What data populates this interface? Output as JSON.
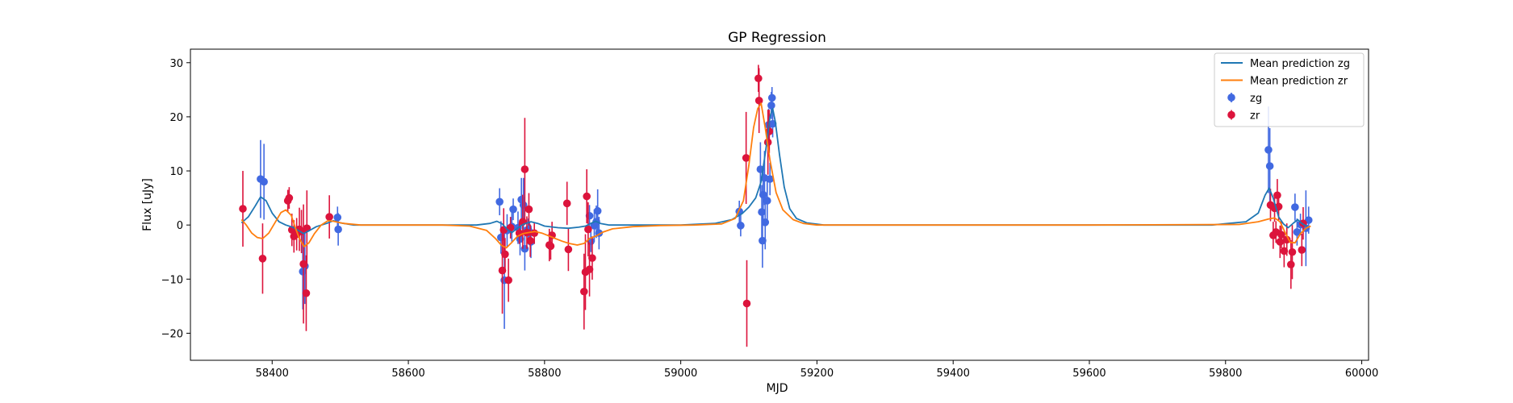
{
  "chart_data": {
    "type": "scatter",
    "title": "GP Regression",
    "xlabel": "MJD",
    "ylabel": "Flux [uJy]",
    "xlim": [
      58280,
      60010
    ],
    "ylim": [
      -25,
      32.5
    ],
    "xticks": [
      58400,
      58600,
      58800,
      59000,
      59200,
      59400,
      59600,
      59800,
      60000
    ],
    "yticks": [
      -20,
      -10,
      0,
      10,
      20,
      30
    ],
    "grid": false,
    "legend_position": "top-right",
    "legend": [
      {
        "label": "Mean prediction zg",
        "kind": "line",
        "color": "#1f77b4"
      },
      {
        "label": "Mean prediction zr",
        "kind": "line",
        "color": "#ff7f0e"
      },
      {
        "label": "zg",
        "kind": "errorbar",
        "color": "#4169e1"
      },
      {
        "label": "zr",
        "kind": "errorbar",
        "color": "#dc143c"
      }
    ],
    "series": [
      {
        "name": "Mean prediction zg",
        "kind": "line",
        "color": "#1f77b4",
        "points": [
          [
            58355,
            0.4
          ],
          [
            58365,
            1.5
          ],
          [
            58375,
            3.5
          ],
          [
            58383,
            5.2
          ],
          [
            58391,
            4.5
          ],
          [
            58400,
            2.2
          ],
          [
            58410,
            0.6
          ],
          [
            58420,
            0.0
          ],
          [
            58430,
            -0.4
          ],
          [
            58440,
            -1.1
          ],
          [
            58446,
            -1.6
          ],
          [
            58455,
            -1.0
          ],
          [
            58465,
            -0.3
          ],
          [
            58480,
            0.3
          ],
          [
            58490,
            0.8
          ],
          [
            58500,
            0.4
          ],
          [
            58520,
            0.0
          ],
          [
            58600,
            0.0
          ],
          [
            58700,
            0.0
          ],
          [
            58720,
            0.3
          ],
          [
            58730,
            0.7
          ],
          [
            58738,
            0.2
          ],
          [
            58745,
            -0.8
          ],
          [
            58752,
            -1.4
          ],
          [
            58760,
            -0.6
          ],
          [
            58770,
            0.2
          ],
          [
            58780,
            0.6
          ],
          [
            58790,
            0.3
          ],
          [
            58800,
            -0.2
          ],
          [
            58820,
            -0.5
          ],
          [
            58835,
            -0.6
          ],
          [
            58850,
            -0.4
          ],
          [
            58860,
            -0.2
          ],
          [
            58868,
            0.3
          ],
          [
            58875,
            0.7
          ],
          [
            58882,
            0.3
          ],
          [
            58895,
            0.0
          ],
          [
            59000,
            0.0
          ],
          [
            59050,
            0.3
          ],
          [
            59075,
            1.0
          ],
          [
            59090,
            2.1
          ],
          [
            59100,
            3.3
          ],
          [
            59110,
            5.0
          ],
          [
            59118,
            8.0
          ],
          [
            59125,
            14.0
          ],
          [
            59131,
            20.0
          ],
          [
            59135,
            21.5
          ],
          [
            59139,
            19.0
          ],
          [
            59145,
            13.0
          ],
          [
            59152,
            7.0
          ],
          [
            59160,
            3.0
          ],
          [
            59170,
            1.2
          ],
          [
            59185,
            0.4
          ],
          [
            59210,
            0.0
          ],
          [
            59400,
            0.0
          ],
          [
            59600,
            0.0
          ],
          [
            59780,
            0.0
          ],
          [
            59830,
            0.6
          ],
          [
            59848,
            2.2
          ],
          [
            59858,
            5.5
          ],
          [
            59864,
            6.8
          ],
          [
            59870,
            5.0
          ],
          [
            59878,
            1.5
          ],
          [
            59885,
            0.2
          ],
          [
            59892,
            -0.5
          ],
          [
            59900,
            0.4
          ],
          [
            59906,
            1.0
          ],
          [
            59912,
            0.3
          ],
          [
            59920,
            -0.3
          ]
        ]
      },
      {
        "name": "Mean prediction zr",
        "kind": "line",
        "color": "#ff7f0e",
        "points": [
          [
            58355,
            1.0
          ],
          [
            58362,
            0.0
          ],
          [
            58370,
            -1.5
          ],
          [
            58378,
            -2.3
          ],
          [
            58386,
            -2.5
          ],
          [
            58395,
            -1.5
          ],
          [
            58405,
            0.6
          ],
          [
            58413,
            2.3
          ],
          [
            58420,
            2.8
          ],
          [
            58428,
            1.8
          ],
          [
            58434,
            -0.5
          ],
          [
            58440,
            -2.5
          ],
          [
            58447,
            -4.0
          ],
          [
            58454,
            -3.3
          ],
          [
            58462,
            -1.6
          ],
          [
            58472,
            0.0
          ],
          [
            58482,
            0.8
          ],
          [
            58490,
            0.7
          ],
          [
            58505,
            0.3
          ],
          [
            58530,
            0.0
          ],
          [
            58650,
            0.0
          ],
          [
            58690,
            -0.2
          ],
          [
            58715,
            -1.0
          ],
          [
            58728,
            -2.5
          ],
          [
            58737,
            -3.8
          ],
          [
            58744,
            -4.2
          ],
          [
            58752,
            -3.2
          ],
          [
            58760,
            -2.1
          ],
          [
            58768,
            -1.6
          ],
          [
            58776,
            -1.4
          ],
          [
            58786,
            -1.2
          ],
          [
            58796,
            -1.5
          ],
          [
            58806,
            -2.0
          ],
          [
            58816,
            -2.5
          ],
          [
            58826,
            -3.0
          ],
          [
            58836,
            -3.4
          ],
          [
            58848,
            -3.7
          ],
          [
            58858,
            -3.4
          ],
          [
            58866,
            -2.5
          ],
          [
            58876,
            -2.0
          ],
          [
            58886,
            -1.3
          ],
          [
            58900,
            -0.7
          ],
          [
            58930,
            -0.3
          ],
          [
            58970,
            -0.1
          ],
          [
            59020,
            0.0
          ],
          [
            59060,
            0.2
          ],
          [
            59080,
            1.2
          ],
          [
            59092,
            4.5
          ],
          [
            59100,
            11.0
          ],
          [
            59107,
            18.0
          ],
          [
            59113,
            21.5
          ],
          [
            59118,
            22.5
          ],
          [
            59124,
            18.0
          ],
          [
            59131,
            12.0
          ],
          [
            59140,
            6.0
          ],
          [
            59150,
            2.8
          ],
          [
            59165,
            1.0
          ],
          [
            59180,
            0.3
          ],
          [
            59200,
            0.0
          ],
          [
            59400,
            0.0
          ],
          [
            59600,
            0.0
          ],
          [
            59820,
            0.1
          ],
          [
            59848,
            0.6
          ],
          [
            59863,
            1.1
          ],
          [
            59872,
            1.3
          ],
          [
            59880,
            0.6
          ],
          [
            59888,
            -1.5
          ],
          [
            59895,
            -3.2
          ],
          [
            59902,
            -3.3
          ],
          [
            59910,
            -1.6
          ],
          [
            59918,
            -0.6
          ],
          [
            59925,
            -0.2
          ]
        ]
      },
      {
        "name": "zg",
        "kind": "errorbar",
        "color": "#4169e1",
        "points": [
          [
            58383,
            8.5,
            7.2
          ],
          [
            58388,
            8.0,
            7.0
          ],
          [
            58445,
            -8.6,
            7.0
          ],
          [
            58448,
            -7.6,
            7.0
          ],
          [
            58496,
            1.4,
            2.0
          ],
          [
            58497,
            -0.8,
            3.0
          ],
          [
            58734,
            4.3,
            2.5
          ],
          [
            58736,
            -2.3,
            3.0
          ],
          [
            58741,
            -10.2,
            9.0
          ],
          [
            58745,
            -1.0,
            3.0
          ],
          [
            58752,
            -0.3,
            3.0
          ],
          [
            58754,
            2.9,
            2.0
          ],
          [
            58761,
            -0.5,
            3.0
          ],
          [
            58764,
            -2.6,
            3.0
          ],
          [
            58766,
            4.7,
            4.0
          ],
          [
            58769,
            3.7,
            5.0
          ],
          [
            58771,
            -4.4,
            4.0
          ],
          [
            58776,
            -0.8,
            2.0
          ],
          [
            58778,
            -1.3,
            2.0
          ],
          [
            58780,
            -3.1,
            3.0
          ],
          [
            58866,
            1.7,
            2.0
          ],
          [
            58868,
            -3.0,
            2.0
          ],
          [
            58873,
            -0.1,
            3.0
          ],
          [
            58876,
            0.6,
            3.0
          ],
          [
            58878,
            2.6,
            4.0
          ],
          [
            58880,
            -1.5,
            3.0
          ],
          [
            59086,
            2.5,
            2.0
          ],
          [
            59088,
            -0.1,
            2.0
          ],
          [
            59117,
            10.3,
            5.0
          ],
          [
            59119,
            2.4,
            5.0
          ],
          [
            59120,
            -2.9,
            5.0
          ],
          [
            59121,
            5.6,
            5.0
          ],
          [
            59123,
            8.7,
            5.0
          ],
          [
            59124,
            0.5,
            5.0
          ],
          [
            59127,
            4.5,
            4.0
          ],
          [
            59129,
            18.5,
            3.0
          ],
          [
            59131,
            8.5,
            3.0
          ],
          [
            59133,
            22.1,
            2.5
          ],
          [
            59134,
            23.5,
            2.0
          ],
          [
            59135,
            18.7,
            2.5
          ],
          [
            59863,
            13.9,
            8.0
          ],
          [
            59865,
            10.9,
            7.0
          ],
          [
            59902,
            3.3,
            2.5
          ],
          [
            59905,
            -1.3,
            2.5
          ],
          [
            59910,
            0.1,
            2.0
          ],
          [
            59918,
            -0.6,
            7.0
          ],
          [
            59922,
            0.9,
            2.5
          ]
        ]
      },
      {
        "name": "zr",
        "kind": "errorbar",
        "color": "#dc143c",
        "points": [
          [
            58357,
            3.0,
            7.0
          ],
          [
            58386,
            -6.2,
            6.5
          ],
          [
            58423,
            4.5,
            2.0
          ],
          [
            58425,
            5.0,
            2.0
          ],
          [
            58429,
            -0.9,
            3.0
          ],
          [
            58432,
            -2.1,
            3.0
          ],
          [
            58436,
            -1.7,
            3.0
          ],
          [
            58440,
            -0.8,
            4.0
          ],
          [
            58443,
            -1.2,
            4.0
          ],
          [
            58446,
            -7.2,
            11.0
          ],
          [
            58450,
            -12.6,
            7.0
          ],
          [
            58451,
            -0.6,
            7.0
          ],
          [
            58484,
            1.5,
            4.0
          ],
          [
            58738,
            -8.4,
            8.0
          ],
          [
            58740,
            -0.9,
            4.0
          ],
          [
            58742,
            -5.4,
            3.0
          ],
          [
            58747,
            -10.2,
            4.0
          ],
          [
            58750,
            -0.5,
            2.0
          ],
          [
            58763,
            -1.5,
            2.0
          ],
          [
            58768,
            0.6,
            5.0
          ],
          [
            58771,
            10.3,
            9.5
          ],
          [
            58774,
            -1.4,
            3.0
          ],
          [
            58777,
            2.9,
            3.0
          ],
          [
            58779,
            -2.9,
            3.0
          ],
          [
            58785,
            -1.5,
            2.0
          ],
          [
            58807,
            -3.7,
            3.0
          ],
          [
            58809,
            -3.9,
            2.5
          ],
          [
            58811,
            -1.9,
            2.5
          ],
          [
            58833,
            4.0,
            4.0
          ],
          [
            58835,
            -4.5,
            4.0
          ],
          [
            58858,
            -12.3,
            7.0
          ],
          [
            58860,
            -8.7,
            7.0
          ],
          [
            58862,
            5.3,
            5.0
          ],
          [
            58864,
            -0.8,
            5.0
          ],
          [
            58866,
            -8.2,
            5.0
          ],
          [
            58870,
            -6.1,
            4.0
          ],
          [
            59096,
            12.4,
            8.5
          ],
          [
            59097,
            -14.5,
            8.0
          ],
          [
            59114,
            27.1,
            2.5
          ],
          [
            59115,
            23.0,
            6.0
          ],
          [
            59128,
            15.3,
            6.0
          ],
          [
            59130,
            17.3,
            4.0
          ],
          [
            59866,
            3.7,
            3.0
          ],
          [
            59870,
            -1.9,
            2.5
          ],
          [
            59872,
            3.1,
            2.5
          ],
          [
            59874,
            -1.3,
            2.0
          ],
          [
            59876,
            5.5,
            3.0
          ],
          [
            59878,
            3.4,
            2.5
          ],
          [
            59880,
            -3.1,
            3.0
          ],
          [
            59882,
            -1.8,
            2.5
          ],
          [
            59886,
            -4.8,
            3.0
          ],
          [
            59890,
            -2.7,
            3.0
          ],
          [
            59896,
            -7.3,
            4.5
          ],
          [
            59898,
            -5.0,
            5.0
          ],
          [
            59912,
            -4.6,
            3.0
          ],
          [
            59914,
            0.3,
            3.0
          ]
        ]
      }
    ]
  }
}
